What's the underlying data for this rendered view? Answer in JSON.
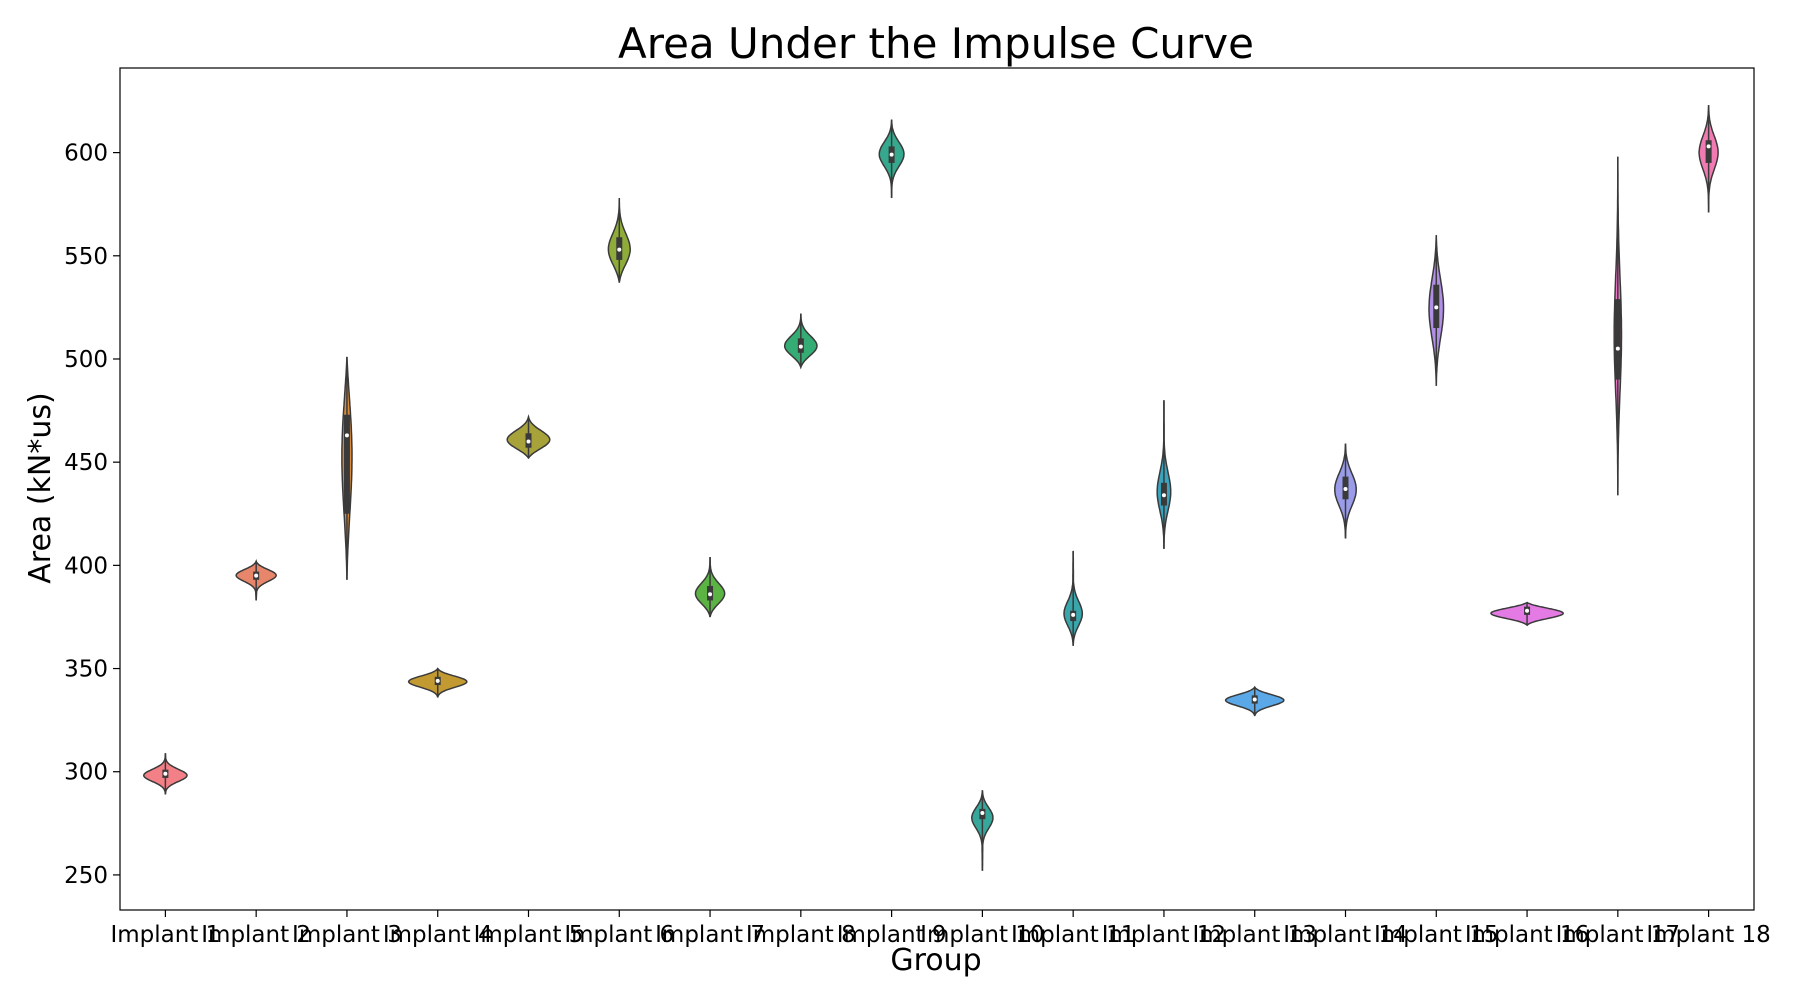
{
  "chart_data": {
    "type": "violin",
    "title": "Area Under the Impulse Curve",
    "xlabel": "Group",
    "ylabel": "Area (kN*us)",
    "ylim": [
      233,
      641
    ],
    "yticks": [
      250,
      300,
      350,
      400,
      450,
      500,
      550,
      600
    ],
    "grid": false,
    "groups": [
      {
        "label": "Implant 1",
        "color": "#f37f87",
        "min": 289,
        "max": 309,
        "q1": 297,
        "median": 299,
        "q3": 301,
        "mode": 298
      },
      {
        "label": "Implant 2",
        "color": "#e8866c",
        "min": 383,
        "max": 402,
        "q1": 393,
        "median": 395,
        "q3": 397,
        "mode": 396
      },
      {
        "label": "Implant 3",
        "color": "#d98b3a",
        "min": 393,
        "max": 501,
        "q1": 425,
        "median": 463,
        "q3": 473,
        "mode": 460
      },
      {
        "label": "Implant 4",
        "color": "#c39a32",
        "min": 336,
        "max": 350,
        "q1": 342,
        "median": 344,
        "q3": 346,
        "mode": 344
      },
      {
        "label": "Implant 5",
        "color": "#a7a23a",
        "min": 452,
        "max": 472,
        "q1": 457,
        "median": 460,
        "q3": 464,
        "mode": 460
      },
      {
        "label": "Implant 6",
        "color": "#8fab39",
        "min": 537,
        "max": 578,
        "q1": 548,
        "median": 553,
        "q3": 559,
        "mode": 551
      },
      {
        "label": "Implant 7",
        "color": "#5bb343",
        "min": 375,
        "max": 404,
        "q1": 383,
        "median": 386,
        "q3": 390,
        "mode": 385
      },
      {
        "label": "Implant 8",
        "color": "#35ac74",
        "min": 496,
        "max": 522,
        "q1": 503,
        "median": 506,
        "q3": 510,
        "mode": 505
      },
      {
        "label": "Implant 9",
        "color": "#35a88d",
        "min": 578,
        "max": 616,
        "q1": 595,
        "median": 599,
        "q3": 603,
        "mode": 600
      },
      {
        "label": "Implant 10",
        "color": "#37a79c",
        "min": 252,
        "max": 291,
        "q1": 277,
        "median": 280,
        "q3": 282,
        "mode": 279
      },
      {
        "label": "Implant 11",
        "color": "#38a6ab",
        "min": 361,
        "max": 407,
        "q1": 373,
        "median": 376,
        "q3": 378,
        "mode": 375
      },
      {
        "label": "Implant 12",
        "color": "#3ba3bd",
        "min": 408,
        "max": 480,
        "q1": 429,
        "median": 434,
        "q3": 440,
        "mode": 434
      },
      {
        "label": "Implant 13",
        "color": "#5aa8e8",
        "min": 327,
        "max": 341,
        "q1": 333,
        "median": 335,
        "q3": 337,
        "mode": 335
      },
      {
        "label": "Implant 14",
        "color": "#9a9ce9",
        "min": 413,
        "max": 459,
        "q1": 432,
        "median": 437,
        "q3": 443,
        "mode": 437
      },
      {
        "label": "Implant 15",
        "color": "#b18fe7",
        "min": 487,
        "max": 560,
        "q1": 515,
        "median": 525,
        "q3": 536,
        "mode": 525
      },
      {
        "label": "Implant 16",
        "color": "#e47ae3",
        "min": 371,
        "max": 382,
        "q1": 376,
        "median": 378,
        "q3": 380,
        "mode": 377
      },
      {
        "label": "Implant 17",
        "color": "#ef79c9",
        "min": 434,
        "max": 598,
        "q1": 490,
        "median": 505,
        "q3": 529,
        "mode": 510
      },
      {
        "label": "Implant 18",
        "color": "#f27ab2",
        "min": 571,
        "max": 623,
        "q1": 595,
        "median": 603,
        "q3": 606,
        "mode": 601
      }
    ]
  }
}
